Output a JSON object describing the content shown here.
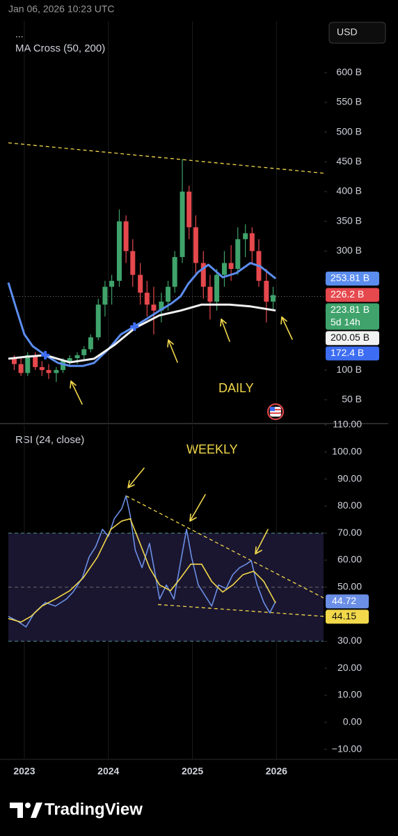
{
  "header": {
    "timestamp": "Jan 06, 2026 10:23 UTC",
    "menu": "...",
    "currency": "USD"
  },
  "chart_data": [
    {
      "type": "candlestick",
      "title": "MA Cross (50, 200)",
      "annotation": "DAILY",
      "xlim": [
        2022.81,
        2026.56
      ],
      "xticks": [
        2023,
        2024,
        2025,
        2026
      ],
      "ylim": [
        10,
        687
      ],
      "yticks": [
        {
          "value": 50,
          "label": "50 B"
        },
        {
          "value": 100,
          "label": "100 B"
        },
        {
          "value": 150,
          "label": "150 B"
        },
        {
          "value": 200,
          "label": "200 B"
        },
        {
          "value": 250,
          "label": "250 B"
        },
        {
          "value": 300,
          "label": "300 B"
        },
        {
          "value": 350,
          "label": "350 B"
        },
        {
          "value": 400,
          "label": "400 B"
        },
        {
          "value": 450,
          "label": "450 B"
        },
        {
          "value": 500,
          "label": "500 B"
        },
        {
          "value": 550,
          "label": "550 B"
        },
        {
          "value": 600,
          "label": "600 B"
        }
      ],
      "up_color": "#3fa36b",
      "down_color": "#e5484d",
      "x": [
        2022.88,
        2022.96,
        2023.04,
        2023.13,
        2023.21,
        2023.29,
        2023.38,
        2023.46,
        2023.54,
        2023.63,
        2023.71,
        2023.79,
        2023.88,
        2023.96,
        2024.04,
        2024.13,
        2024.21,
        2024.29,
        2024.38,
        2024.46,
        2024.54,
        2024.63,
        2024.71,
        2024.79,
        2024.88,
        2024.96,
        2025.04,
        2025.13,
        2025.21,
        2025.29,
        2025.38,
        2025.46,
        2025.54,
        2025.63,
        2025.71,
        2025.79,
        2025.88,
        2025.96
      ],
      "open": [
        120,
        110,
        95,
        125,
        105,
        100,
        95,
        100,
        115,
        120,
        125,
        135,
        155,
        210,
        240,
        250,
        350,
        300,
        260,
        230,
        210,
        200,
        215,
        240,
        290,
        400,
        340,
        280,
        240,
        215,
        260,
        280,
        270,
        320,
        330,
        300,
        250,
        215
      ],
      "high": [
        125,
        120,
        130,
        130,
        115,
        110,
        105,
        120,
        125,
        130,
        140,
        160,
        220,
        250,
        260,
        370,
        360,
        320,
        280,
        250,
        240,
        230,
        250,
        300,
        455,
        410,
        360,
        300,
        260,
        270,
        300,
        310,
        340,
        345,
        340,
        320,
        270,
        240
      ],
      "low": [
        100,
        90,
        90,
        100,
        90,
        85,
        80,
        95,
        105,
        110,
        115,
        130,
        150,
        190,
        210,
        240,
        280,
        240,
        210,
        190,
        160,
        180,
        200,
        230,
        280,
        320,
        260,
        220,
        185,
        200,
        240,
        250,
        260,
        290,
        280,
        240,
        180,
        200
      ],
      "close": [
        110,
        95,
        125,
        105,
        100,
        95,
        100,
        115,
        120,
        125,
        135,
        155,
        210,
        240,
        250,
        350,
        300,
        260,
        230,
        210,
        200,
        215,
        240,
        290,
        400,
        340,
        280,
        240,
        215,
        260,
        280,
        270,
        320,
        330,
        300,
        250,
        215,
        226
      ],
      "series": [
        {
          "color": "#5b8def",
          "x": [
            2022.81,
            2022.9,
            2023.0,
            2023.1,
            2023.25,
            2023.4,
            2023.54,
            2023.7,
            2023.83,
            2024.0,
            2024.15,
            2024.32,
            2024.5,
            2024.61,
            2024.75,
            2024.86,
            2024.95,
            2025.07,
            2025.19,
            2025.36,
            2025.52,
            2025.69,
            2025.81,
            2025.99
          ],
          "values": [
            247,
            205,
            160,
            140,
            125,
            112,
            107,
            107,
            112,
            135,
            160,
            174,
            190,
            200,
            212,
            224,
            245,
            265,
            277,
            256,
            263,
            280,
            274,
            253.81
          ]
        },
        {
          "color": "#f2f2f2",
          "x": [
            2022.81,
            2023.0,
            2023.25,
            2023.54,
            2023.83,
            2024.07,
            2024.32,
            2024.61,
            2024.86,
            2025.11,
            2025.44,
            2025.69,
            2025.99
          ],
          "values": [
            119,
            122,
            125,
            113,
            119,
            142,
            171,
            192,
            200,
            210,
            210,
            207,
            200.05
          ]
        }
      ],
      "cross_points": {
        "color": "#3d6df2",
        "x": [
          2023.25,
          2024.31
        ],
        "values": [
          125,
          173
        ]
      },
      "trendline": {
        "color": "#f2d84b",
        "x": [
          2022.81,
          2026.56
        ],
        "values": [
          482,
          431
        ]
      },
      "price_tags": [
        {
          "value": 253.81,
          "label": "253.81 B",
          "color": "#5b8def",
          "text_color": "#ffffff"
        },
        {
          "value": 226.2,
          "label": "226.2 B",
          "color": "#e5484d",
          "text_color": "#ffffff"
        },
        {
          "value": 223.81,
          "label": "223.81 B",
          "countdown": "5d 14h",
          "color": "#3fa36b",
          "text_color": "#ffffff"
        },
        {
          "value": 200.05,
          "label": "200.05 B",
          "color": "#f2f2f2",
          "text_color": "#111111"
        },
        {
          "value": 172.4,
          "label": "172.4 B",
          "color": "#3d6df2",
          "text_color": "#ffffff"
        }
      ]
    },
    {
      "type": "line",
      "title": "RSI (24, close)",
      "annotation": "WEEKLY",
      "xlim": [
        2022.81,
        2026.56
      ],
      "xticks": [
        2023,
        2024,
        2025,
        2026
      ],
      "ylim": [
        -13.7,
        110
      ],
      "yticks": [
        {
          "value": -10,
          "label": "−10.00"
        },
        {
          "value": 0,
          "label": "0.00"
        },
        {
          "value": 10,
          "label": "10.00"
        },
        {
          "value": 20,
          "label": "20.00"
        },
        {
          "value": 30,
          "label": "30.00"
        },
        {
          "value": 40,
          "label": "40.00"
        },
        {
          "value": 50,
          "label": "50.00"
        },
        {
          "value": 60,
          "label": "60.00"
        },
        {
          "value": 70,
          "label": "70.00"
        },
        {
          "value": 80,
          "label": "80.00"
        },
        {
          "value": 90,
          "label": "90.00"
        },
        {
          "value": 100,
          "label": "100.00"
        },
        {
          "value": 110,
          "label": "110.00"
        }
      ],
      "band": {
        "upper": 70,
        "middle": 50,
        "lower": 30,
        "color": "#1a1630"
      },
      "series": [
        {
          "color": "#6b8fe6",
          "x": [
            2022.81,
            2022.92,
            2023.02,
            2023.12,
            2023.25,
            2023.37,
            2023.5,
            2023.58,
            2023.69,
            2023.77,
            2023.85,
            2023.93,
            2024.0,
            2024.07,
            2024.16,
            2024.21,
            2024.26,
            2024.32,
            2024.4,
            2024.49,
            2024.55,
            2024.61,
            2024.69,
            2024.78,
            2024.84,
            2024.93,
            2024.99,
            2025.07,
            2025.15,
            2025.23,
            2025.31,
            2025.4,
            2025.48,
            2025.56,
            2025.64,
            2025.7,
            2025.77,
            2025.85,
            2025.92,
            2025.99
          ],
          "values": [
            39.2,
            37.4,
            35.3,
            40.5,
            44.3,
            43,
            45.6,
            48.2,
            53.4,
            61.1,
            65,
            71.4,
            68.8,
            75.3,
            79.1,
            83.8,
            76.5,
            63.7,
            57.2,
            66.2,
            55.9,
            45.6,
            50.8,
            45.6,
            55.9,
            71.4,
            61.1,
            50.8,
            46.9,
            43,
            50.8,
            49.5,
            54.6,
            57.2,
            58.5,
            59.8,
            50.8,
            44.3,
            40.5,
            44.72
          ]
        },
        {
          "color": "#f2d84b",
          "x": [
            2022.81,
            2022.96,
            2023.08,
            2023.21,
            2023.37,
            2023.54,
            2023.7,
            2023.87,
            2024.03,
            2024.16,
            2024.26,
            2024.36,
            2024.49,
            2024.61,
            2024.74,
            2024.86,
            2024.98,
            2025.11,
            2025.23,
            2025.36,
            2025.48,
            2025.6,
            2025.73,
            2025.85,
            2025.99
          ],
          "values": [
            38.4,
            37.1,
            39.2,
            43,
            45.6,
            48.7,
            53.4,
            61.1,
            71.4,
            74.5,
            75.3,
            67.5,
            57.2,
            50.8,
            48.7,
            53.4,
            58.5,
            58.5,
            52.1,
            48.2,
            50.8,
            54.6,
            55.9,
            52.1,
            44.15
          ]
        }
      ],
      "trendlines": [
        {
          "color": "#f2d84b",
          "x": [
            2024.21,
            2026.56
          ],
          "values": [
            83.8,
            46
          ]
        },
        {
          "color": "#f2d84b",
          "x": [
            2024.59,
            2026.56
          ],
          "values": [
            43.6,
            39.2
          ]
        }
      ]
    }
  ],
  "footer": {
    "brand": "TradingView"
  }
}
